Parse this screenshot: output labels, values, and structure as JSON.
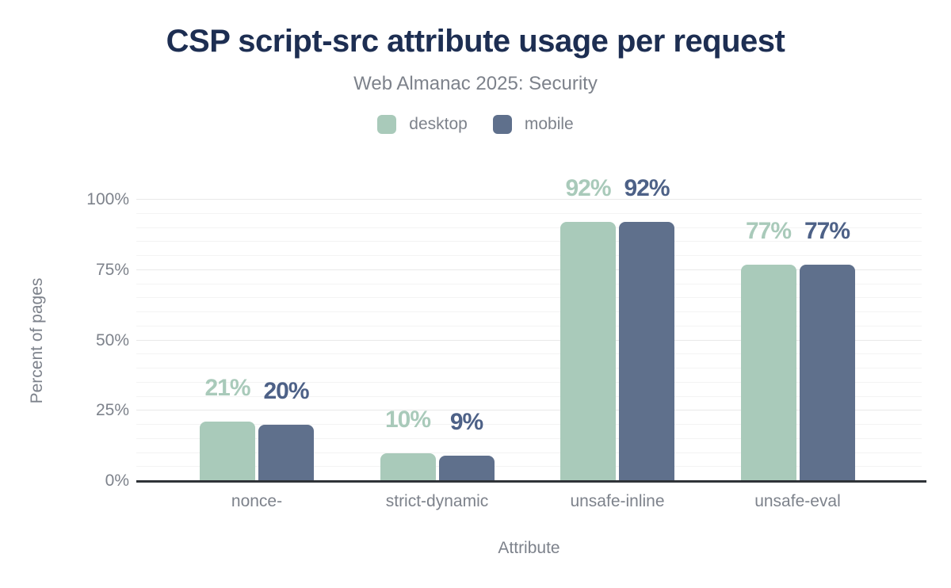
{
  "chart_data": {
    "type": "bar",
    "title": "CSP script-src attribute usage per request",
    "subtitle": "Web Almanac 2025: Security",
    "categories": [
      "nonce-",
      "strict-dynamic",
      "unsafe-inline",
      "unsafe-eval"
    ],
    "series": [
      {
        "name": "desktop",
        "color": "#a9caba",
        "label_color": "#a9caba",
        "values": [
          21,
          10,
          92,
          77
        ]
      },
      {
        "name": "mobile",
        "color": "#5f708c",
        "label_color": "#4d6187",
        "values": [
          20,
          9,
          92,
          77
        ]
      }
    ],
    "value_suffix": "%",
    "data_labels": [
      [
        "21%",
        "10%",
        "92%",
        "77%"
      ],
      [
        "20%",
        "9%",
        "92%",
        "77%"
      ]
    ],
    "xlabel": "Attribute",
    "ylabel": "Percent of pages",
    "yticks": [
      {
        "value": 0,
        "label": "0%"
      },
      {
        "value": 25,
        "label": "25%"
      },
      {
        "value": 50,
        "label": "50%"
      },
      {
        "value": 75,
        "label": "75%"
      },
      {
        "value": 100,
        "label": "100%"
      }
    ],
    "ylim": [
      0,
      100
    ],
    "grid": {
      "minor_step": 5,
      "major_step": 25,
      "visible": true
    },
    "legend_position": "top"
  },
  "colors": {
    "title": "#1d2e52",
    "muted_text": "#7d828b",
    "axis_line": "#2f3338",
    "grid_minor": "#f3f3f3",
    "grid_major": "#e9e9e9",
    "background": "#ffffff"
  }
}
